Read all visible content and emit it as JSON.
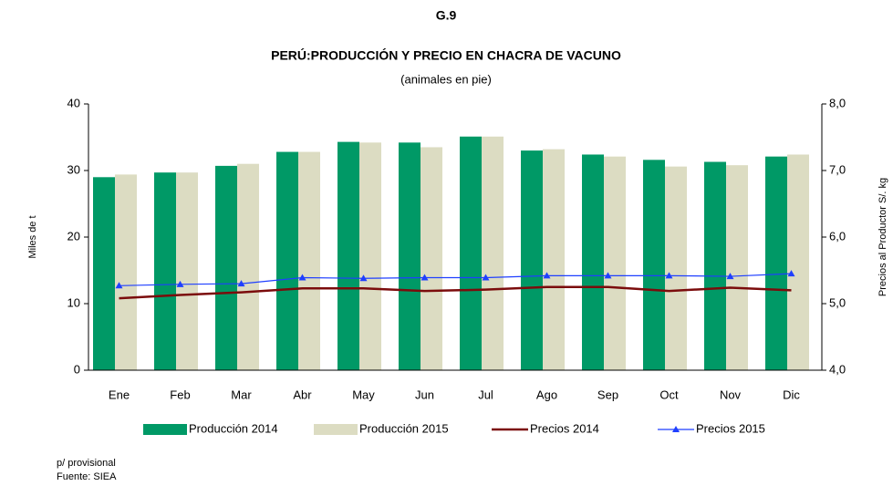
{
  "chart_data": {
    "type": "bar_line",
    "title": "G.9",
    "subtitle": "PERÚ:PRODUCCIÓN Y PRECIO EN CHACRA DE VACUNO",
    "subtitle2": "(animales en pie)",
    "ylabel": "Miles de t",
    "y2label": "Precios al Productor S/. kg",
    "notes": [
      "p/ provisional",
      "Fuente: SIEA"
    ],
    "categories": [
      "Ene",
      "Feb",
      "Mar",
      "Abr",
      "May",
      "Jun",
      "Jul",
      "Ago",
      "Sep",
      "Oct",
      "Nov",
      "Dic"
    ],
    "ylim": [
      0,
      40
    ],
    "yticks": [
      0,
      10,
      20,
      30,
      40
    ],
    "y2lim": [
      4,
      8
    ],
    "y2ticks": [
      {
        "value": 4,
        "label": "4,0"
      },
      {
        "value": 5,
        "label": "5,0"
      },
      {
        "value": 6,
        "label": "6,0"
      },
      {
        "value": 7,
        "label": "7,0"
      },
      {
        "value": 8,
        "label": "8,0"
      }
    ],
    "series": [
      {
        "name": "Producción 2014",
        "kind": "bar",
        "color": "#009966",
        "values": [
          29,
          29.7,
          30.7,
          32.8,
          34.3,
          34.2,
          35.1,
          33,
          32.4,
          31.6,
          31.3,
          32.1
        ]
      },
      {
        "name": "Producción 2015",
        "kind": "bar",
        "color": "#dcdcc2",
        "values": [
          29.4,
          29.7,
          31,
          32.8,
          34.2,
          33.5,
          35.1,
          33.2,
          32.1,
          30.6,
          30.8,
          32.4
        ]
      },
      {
        "name": "Precios 2014",
        "kind": "line",
        "axis": "y2",
        "color": "#7b0c0c",
        "values": [
          5.08,
          5.13,
          5.17,
          5.23,
          5.23,
          5.19,
          5.21,
          5.25,
          5.25,
          5.19,
          5.24,
          5.2
        ]
      },
      {
        "name": "Precios 2015",
        "kind": "line",
        "axis": "y2",
        "color": "#1f3fff",
        "marker": "triangle",
        "values": [
          5.27,
          5.29,
          5.3,
          5.39,
          5.38,
          5.39,
          5.39,
          5.42,
          5.42,
          5.42,
          5.41,
          5.45
        ]
      }
    ]
  }
}
